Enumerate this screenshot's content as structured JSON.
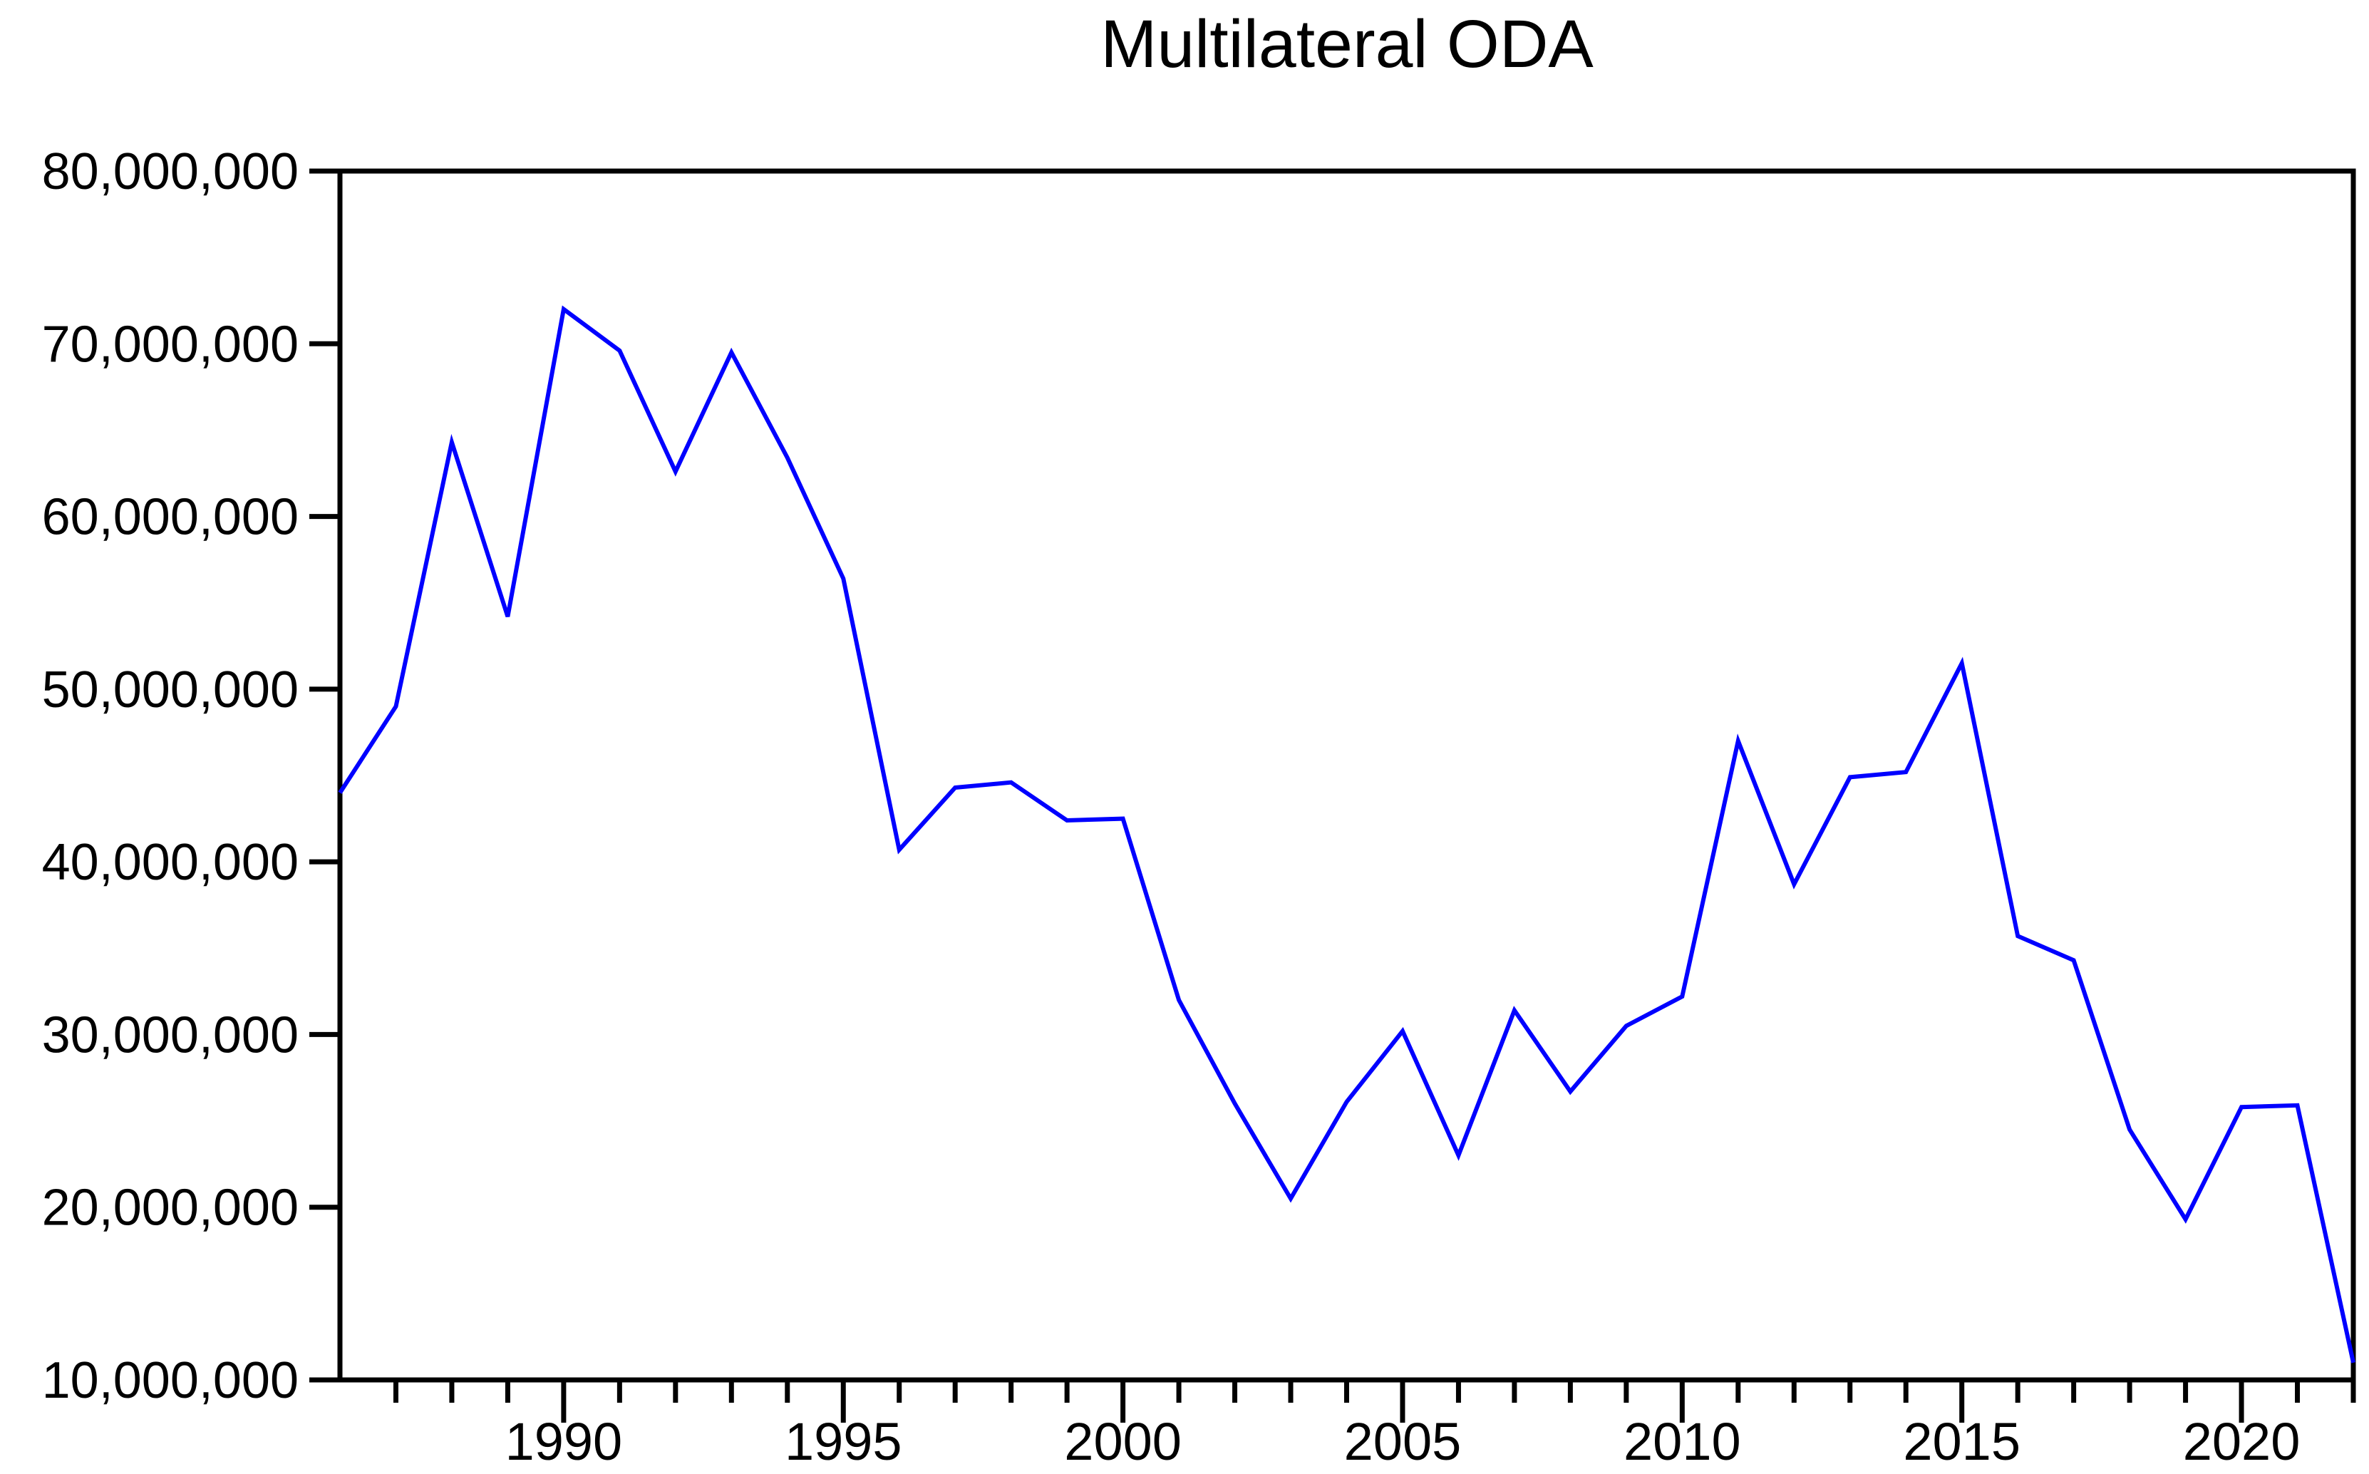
{
  "title": "Multilateral ODA",
  "colors": {
    "line": "#0000FF",
    "axis": "#000000",
    "background": "#FFFFFF",
    "text": "#000000"
  },
  "chart_data": {
    "type": "line",
    "title": "Multilateral ODA",
    "xlabel": "",
    "ylabel": "",
    "grid": false,
    "legend": "none",
    "xlim": [
      1986,
      2022
    ],
    "ylim": [
      10000000,
      80000000
    ],
    "x": [
      1986,
      1987,
      1988,
      1989,
      1990,
      1991,
      1992,
      1993,
      1994,
      1995,
      1996,
      1997,
      1998,
      1999,
      2000,
      2001,
      2002,
      2003,
      2004,
      2005,
      2006,
      2007,
      2008,
      2009,
      2010,
      2011,
      2012,
      2013,
      2014,
      2015,
      2016,
      2017,
      2018,
      2019,
      2020,
      2021,
      2022
    ],
    "series": [
      {
        "name": "Multilateral ODA",
        "values": [
          44000000,
          49000000,
          64300000,
          54200000,
          72000000,
          69600000,
          62600000,
          69500000,
          63400000,
          56400000,
          40700000,
          44300000,
          44600000,
          42400000,
          42500000,
          32000000,
          26000000,
          20500000,
          26100000,
          30200000,
          23000000,
          31400000,
          26700000,
          30500000,
          32200000,
          47000000,
          38700000,
          44900000,
          45200000,
          51500000,
          35700000,
          34300000,
          24500000,
          19300000,
          25800000,
          25900000,
          11000000
        ]
      }
    ],
    "y_ticks": [
      10000000,
      20000000,
      30000000,
      40000000,
      50000000,
      60000000,
      70000000,
      80000000
    ],
    "y_tick_labels": [
      "10,000,000",
      "20,000,000",
      "30,000,000",
      "40,000,000",
      "50,000,000",
      "60,000,000",
      "70,000,000",
      "80,000,000"
    ],
    "x_major_ticks": [
      1990,
      1995,
      2000,
      2005,
      2010,
      2015,
      2020
    ],
    "x_major_tick_labels": [
      "1990",
      "1995",
      "2000",
      "2005",
      "2010",
      "2015",
      "2020"
    ]
  }
}
